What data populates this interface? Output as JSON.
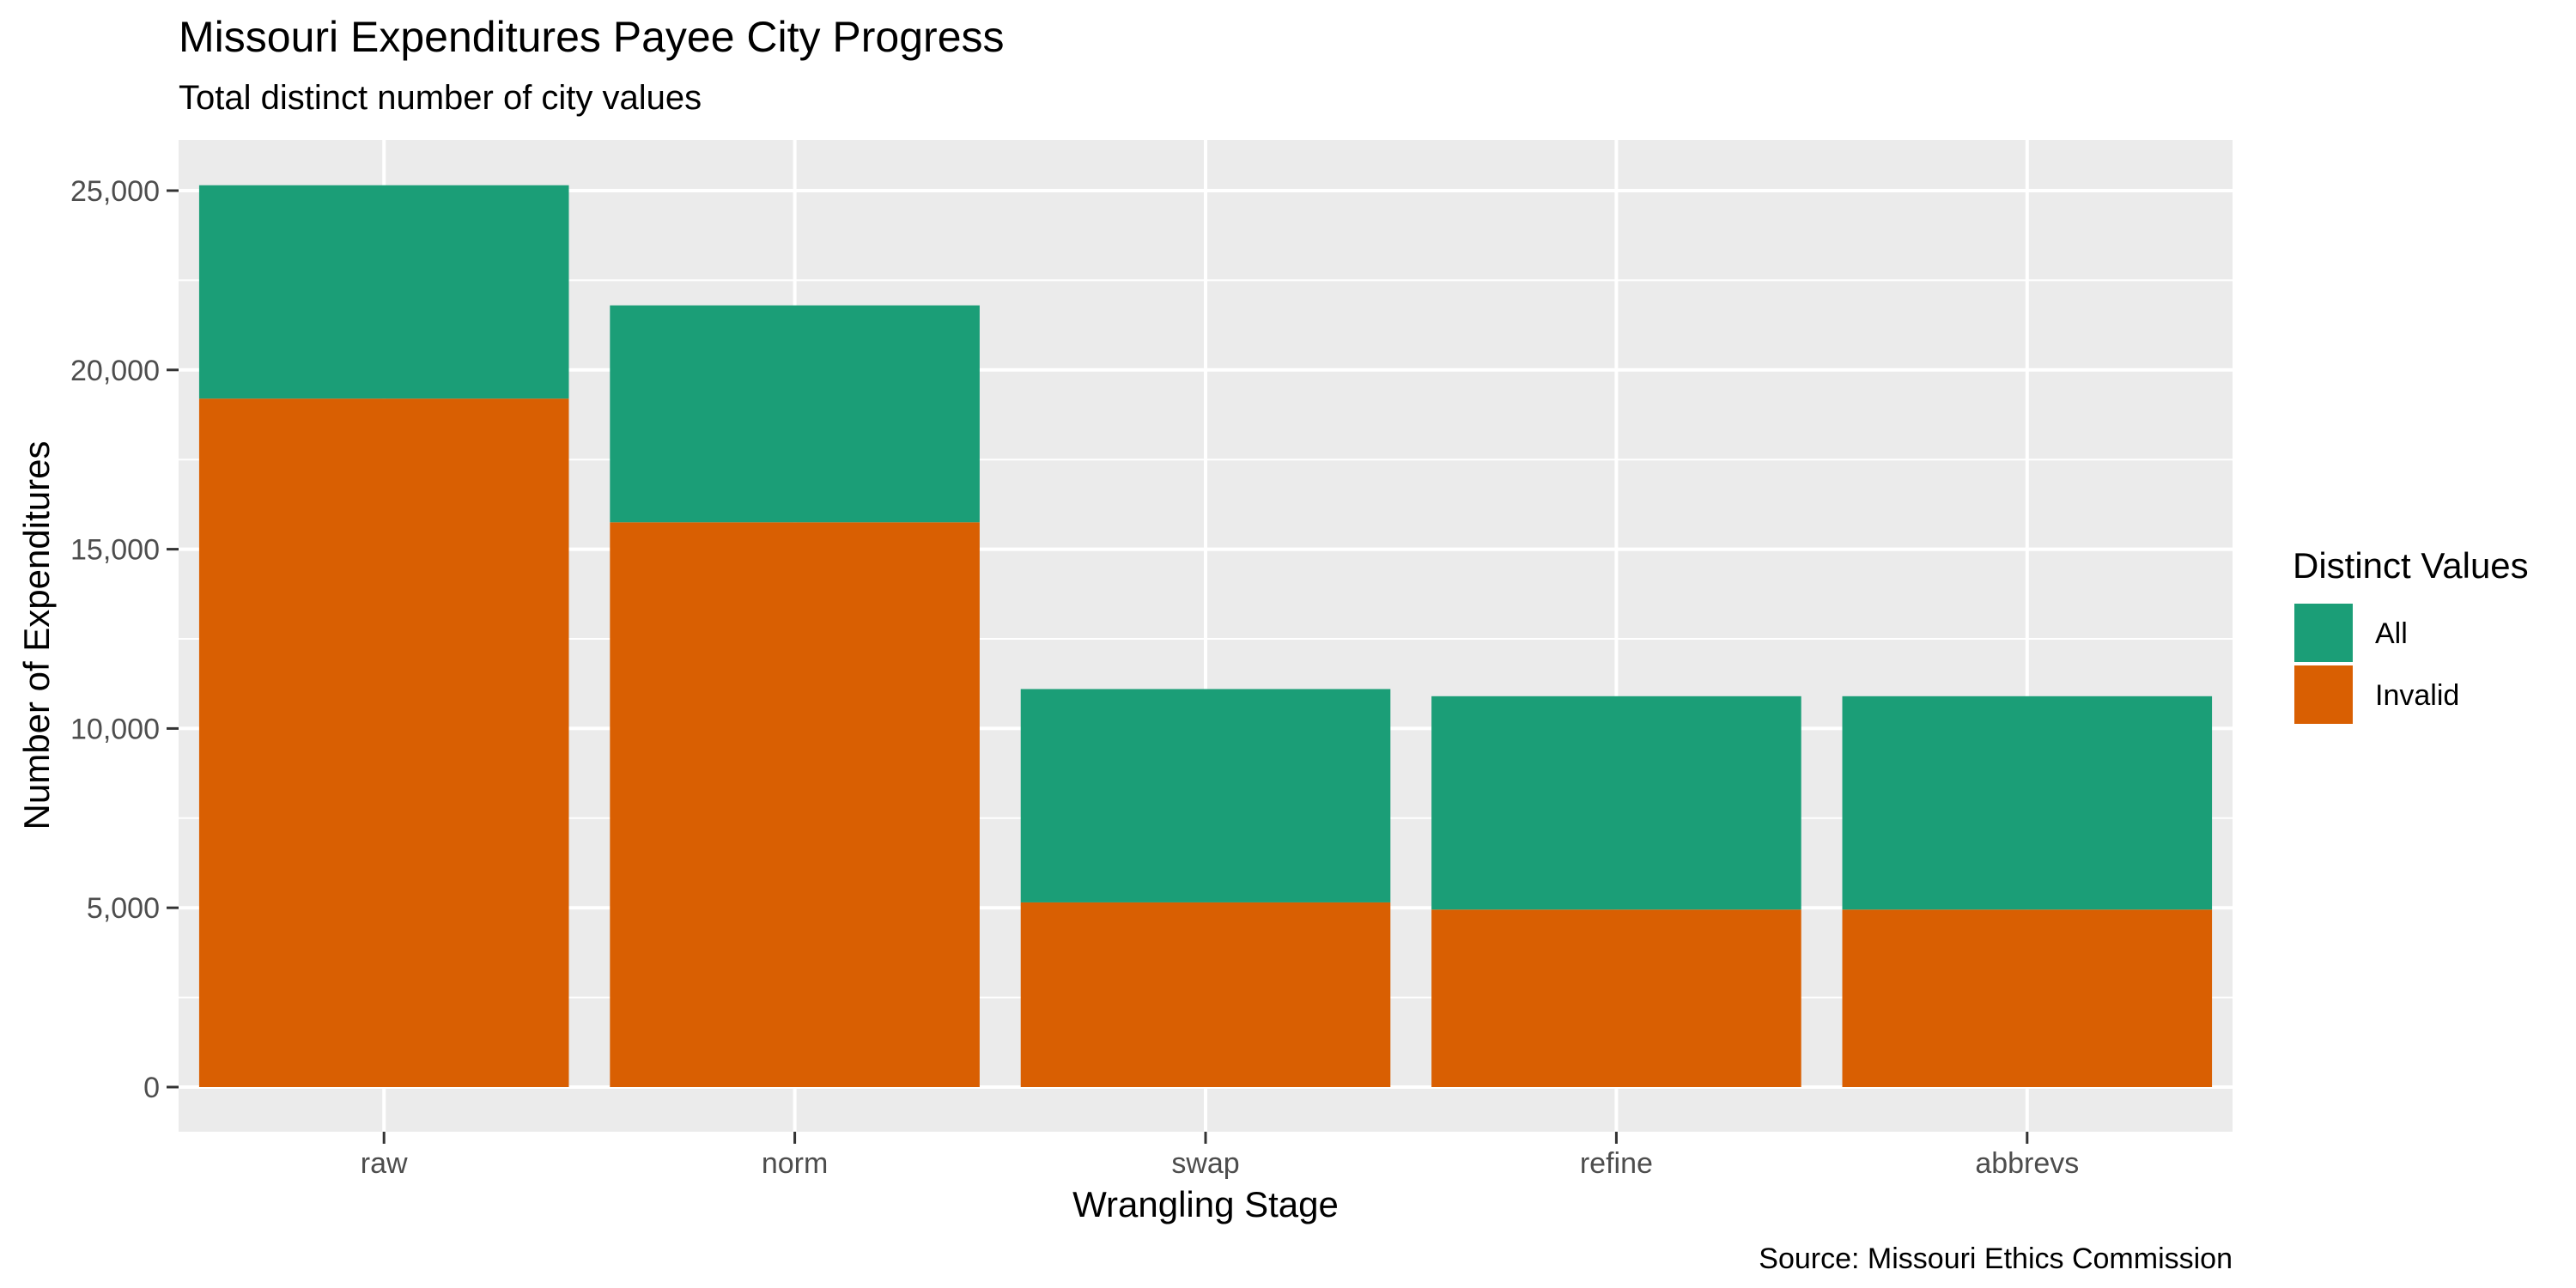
{
  "chart_data": {
    "type": "bar",
    "stacked": true,
    "title": "Missouri Expenditures Payee City Progress",
    "subtitle": "Total distinct number of city values",
    "xlabel": "Wrangling Stage",
    "ylabel": "Number of Expenditures",
    "caption": "Source: Missouri Ethics Commission",
    "categories": [
      "raw",
      "norm",
      "swap",
      "refine",
      "abbrevs"
    ],
    "ylim": [
      0,
      26500
    ],
    "yticks": [
      0,
      5000,
      10000,
      15000,
      20000,
      25000
    ],
    "ytick_labels": [
      "0",
      "5,000",
      "10,000",
      "15,000",
      "20,000",
      "25,000"
    ],
    "legend": {
      "title": "Distinct Values",
      "position": "right"
    },
    "grid": true,
    "series": [
      {
        "name": "Invalid",
        "color": "#D95F02",
        "values": [
          19200,
          15750,
          5150,
          4950,
          4950
        ]
      },
      {
        "name": "All",
        "color": "#1B9E77",
        "values": [
          5950,
          6050,
          5950,
          5950,
          5950
        ]
      }
    ],
    "legend_order": [
      "All",
      "Invalid"
    ]
  }
}
